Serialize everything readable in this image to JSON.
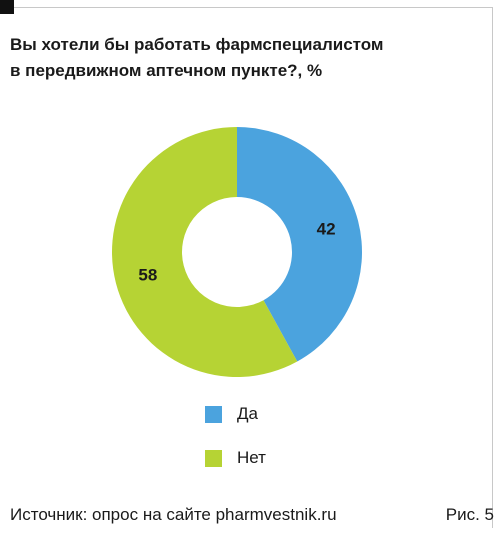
{
  "chart_data": {
    "type": "pie",
    "donut": true,
    "title": "Вы хотели бы работать фармспециалистом\nв передвижном аптечном пункте?, %",
    "categories": [
      "Да",
      "Нет"
    ],
    "values": [
      42,
      58
    ],
    "colors": [
      "#4ba3de",
      "#b6d334"
    ],
    "start": "top",
    "direction": "clockwise",
    "legend_position": "bottom"
  },
  "footer": {
    "source": "Источник: опрос на сайте pharmvestnik.ru",
    "figure_label": "Рис. 5"
  }
}
